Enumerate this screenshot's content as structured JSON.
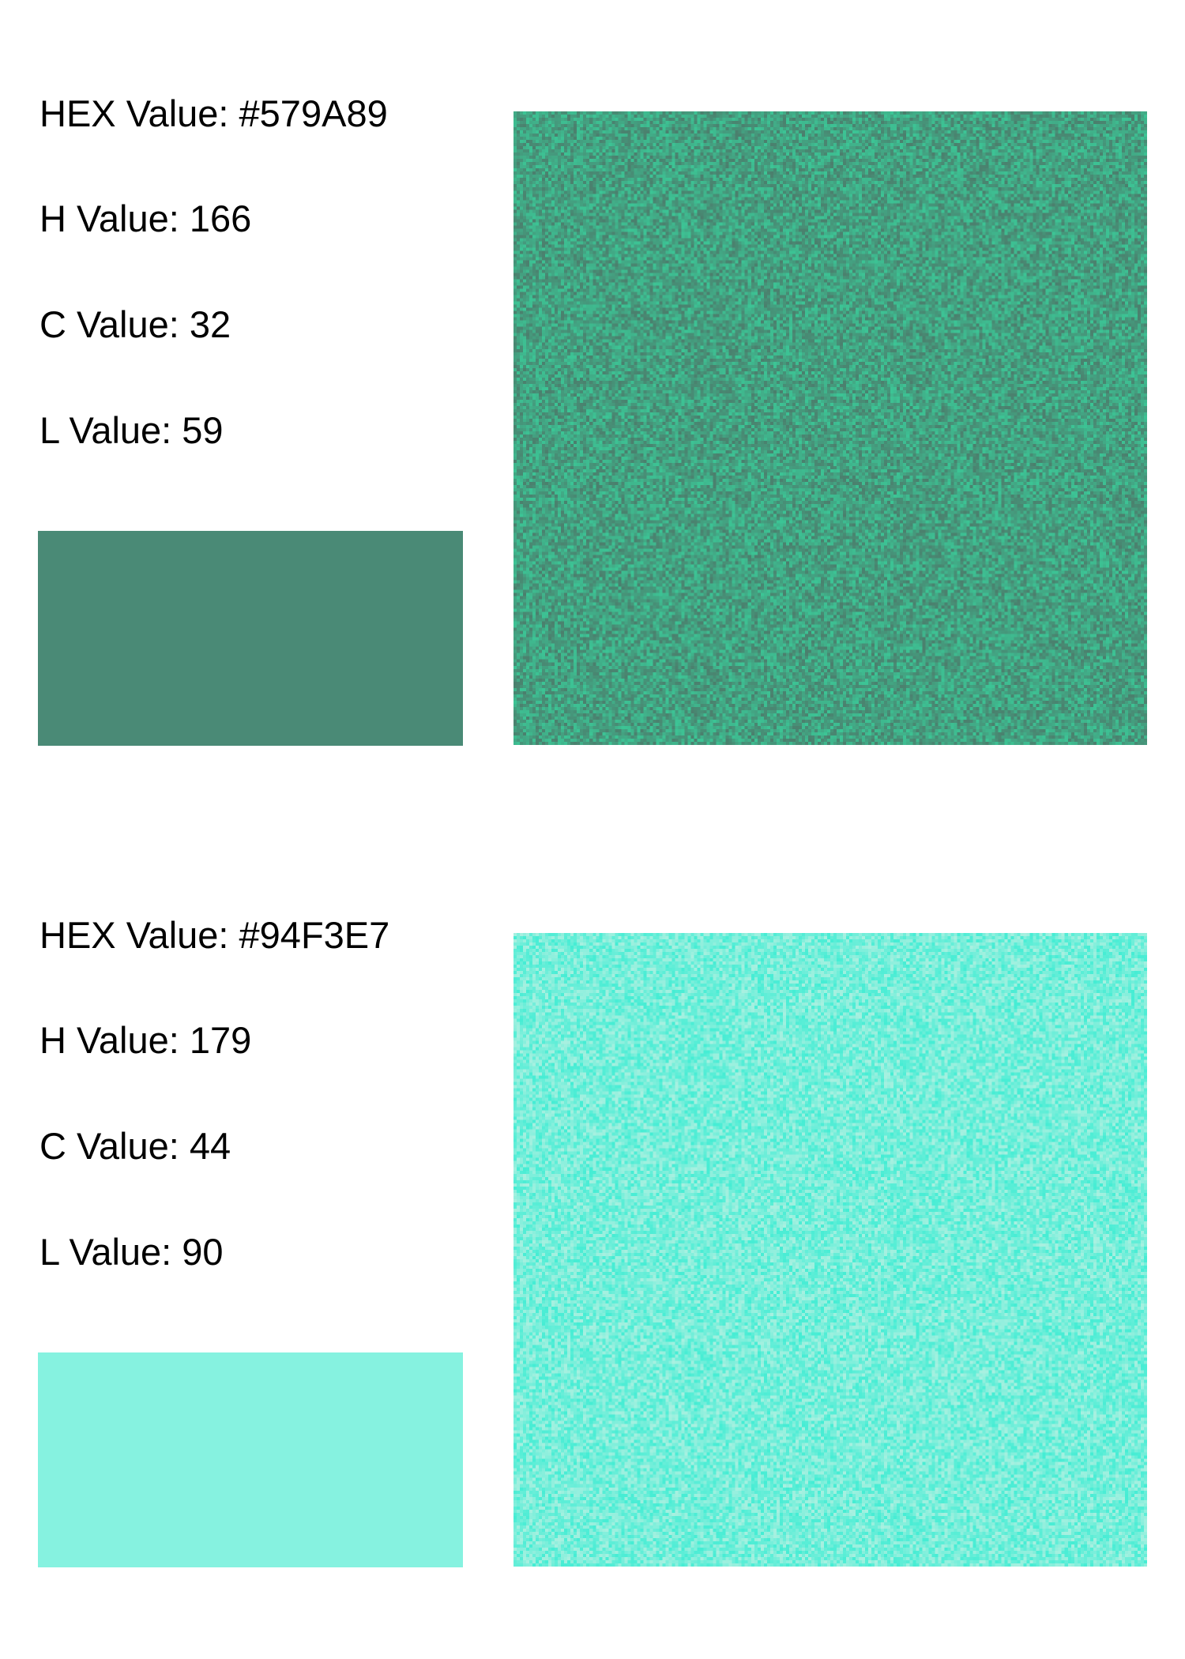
{
  "swatches": [
    {
      "hex_label": "HEX Value: #579A89",
      "h_label": "H Value: 166",
      "c_label": "C Value: 32",
      "l_label": "L Value: 59",
      "swatch_color": "#4A8A76",
      "noise_dark": "#4B7F6D",
      "noise_light": "#3CC495"
    },
    {
      "hex_label": "HEX Value: #94F3E7",
      "h_label": "H Value: 179",
      "c_label": "C Value: 44",
      "l_label": "L Value: 90",
      "swatch_color": "#86F2E0",
      "noise_dark": "#45EDD4",
      "noise_light": "#A8F0E0"
    }
  ]
}
